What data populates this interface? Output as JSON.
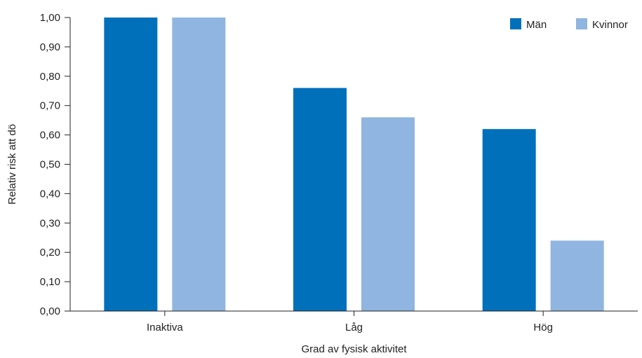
{
  "chart_data": {
    "type": "bar",
    "title": "",
    "xlabel": "Grad av fysisk aktivitet",
    "ylabel": "Relativ risk att dö",
    "categories": [
      "Inaktiva",
      "Låg",
      "Hög"
    ],
    "series": [
      {
        "name": "Män",
        "color": "#0070bb",
        "values": [
          1.0,
          0.76,
          0.62
        ]
      },
      {
        "name": "Kvinnor",
        "color": "#8fb5e0",
        "values": [
          1.0,
          0.66,
          0.24
        ]
      }
    ],
    "ylim": [
      0,
      1
    ],
    "yticks": [
      "0,00",
      "0,10",
      "0,20",
      "0,30",
      "0,40",
      "0,50",
      "0,60",
      "0,70",
      "0,80",
      "0,90",
      "1,00"
    ],
    "grid": false,
    "legend_position": "top-right"
  }
}
